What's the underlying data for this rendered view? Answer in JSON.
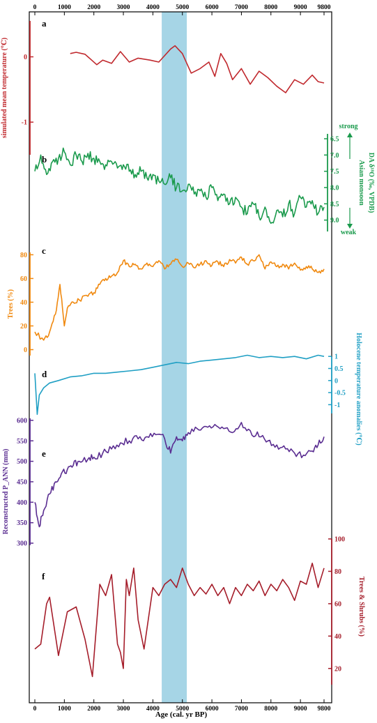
{
  "x_axis": {
    "label": "Age (cal. yr BP)",
    "ticks": [
      0,
      1000,
      2000,
      3000,
      4000,
      5000,
      6000,
      7000,
      8000,
      9000,
      9800
    ],
    "range": [
      0,
      9800
    ]
  },
  "highlight": {
    "x_range": [
      4300,
      5150
    ],
    "color": "#a6d5e6"
  },
  "chart_data": [
    {
      "type": "line",
      "panel": "a",
      "color": "#c0282d",
      "ylabel": "simulated mean temperature (℃)",
      "ylim": [
        -1.5,
        0.55
      ],
      "yticks": [
        0,
        -1
      ],
      "axis_side": "left",
      "x": [
        1200,
        1400,
        1700,
        2100,
        2300,
        2600,
        2900,
        3200,
        3500,
        3900,
        4200,
        4600,
        4750,
        5000,
        5300,
        5600,
        5900,
        6100,
        6300,
        6500,
        6700,
        7000,
        7300,
        7600,
        7900,
        8200,
        8500,
        8800,
        9100,
        9400,
        9600,
        9800
      ],
      "values": [
        0.05,
        0.07,
        0.04,
        -0.12,
        -0.05,
        -0.1,
        0.08,
        -0.08,
        -0.02,
        -0.05,
        -0.08,
        0.12,
        0.17,
        0.05,
        -0.25,
        -0.18,
        -0.08,
        -0.3,
        0.05,
        -0.1,
        -0.35,
        -0.18,
        -0.42,
        -0.22,
        -0.32,
        -0.45,
        -0.55,
        -0.35,
        -0.42,
        -0.28,
        -0.38,
        -0.4
      ]
    },
    {
      "type": "line",
      "panel": "b",
      "color": "#1a9a4c",
      "ylabel": "DA δ¹⁸O (‰, VPDB)",
      "ylabel2": "Asian monsoon",
      "strong_label": "strong",
      "weak_label": "weak",
      "ylim": [
        9.35,
        6.35
      ],
      "yticks": [
        9.0,
        8.5,
        8.0,
        7.5,
        7.0,
        6.5
      ],
      "ytick_labels": [
        "9.0",
        "8.5",
        "8.0",
        "7.5",
        "7.0",
        "6.5"
      ],
      "axis_side": "right",
      "x": [
        0,
        200,
        400,
        600,
        800,
        1000,
        1200,
        1400,
        1600,
        1800,
        2000,
        2200,
        2400,
        2600,
        2800,
        3000,
        3200,
        3400,
        3600,
        3800,
        4000,
        4200,
        4400,
        4600,
        4800,
        5000,
        5200,
        5400,
        5600,
        5800,
        6000,
        6200,
        6400,
        6600,
        6800,
        7000,
        7200,
        7400,
        7600,
        7800,
        8000,
        8200,
        8400,
        8600,
        8800,
        9000,
        9200,
        9400,
        9600,
        9800
      ],
      "values": [
        7.5,
        7.0,
        7.6,
        7.2,
        7.1,
        6.9,
        7.3,
        7.0,
        7.2,
        6.95,
        7.1,
        7.2,
        7.3,
        7.2,
        7.4,
        7.3,
        7.5,
        7.6,
        7.5,
        7.7,
        7.6,
        7.8,
        7.9,
        7.7,
        8.0,
        8.1,
        7.9,
        8.2,
        8.1,
        8.3,
        8.0,
        8.4,
        8.2,
        8.5,
        8.3,
        8.6,
        8.8,
        8.5,
        8.9,
        8.6,
        9.1,
        8.7,
        8.9,
        8.5,
        8.8,
        8.3,
        8.6,
        8.4,
        8.8,
        8.6
      ]
    },
    {
      "type": "line",
      "panel": "c",
      "color": "#f0890f",
      "ylabel": "Trees (%)",
      "ylim": [
        -5,
        82
      ],
      "yticks": [
        0,
        20,
        40,
        60,
        80
      ],
      "axis_side": "left",
      "x": [
        0,
        300,
        500,
        700,
        850,
        1000,
        1100,
        1300,
        1500,
        1800,
        2000,
        2200,
        2400,
        2600,
        2800,
        3000,
        3200,
        3400,
        3600,
        3800,
        4000,
        4200,
        4400,
        4600,
        4800,
        5000,
        5200,
        5400,
        5600,
        5800,
        6000,
        6200,
        6400,
        6600,
        6800,
        7000,
        7200,
        7400,
        7600,
        7800,
        8000,
        8200,
        8400,
        8600,
        8800,
        9000,
        9200,
        9400,
        9600,
        9800
      ],
      "values": [
        15,
        8,
        15,
        30,
        55,
        20,
        35,
        40,
        42,
        45,
        48,
        55,
        60,
        62,
        65,
        75,
        70,
        72,
        68,
        73,
        70,
        75,
        68,
        72,
        76,
        70,
        73,
        69,
        72,
        75,
        71,
        74,
        70,
        76,
        73,
        78,
        72,
        75,
        80,
        68,
        74,
        70,
        72,
        68,
        73,
        67,
        70,
        68,
        65,
        68
      ]
    },
    {
      "type": "line",
      "panel": "d",
      "color": "#1f9fc4",
      "ylabel": "Holocene temperature anomalies (℃)",
      "ylim": [
        -1.45,
        1.15
      ],
      "yticks": [
        1,
        0.5,
        0,
        -0.5,
        -1
      ],
      "ytick_labels": [
        "1",
        "0.5",
        "0",
        "-0.5",
        "-1"
      ],
      "axis_side": "right",
      "x": [
        0,
        80,
        150,
        300,
        500,
        800,
        1200,
        1600,
        2000,
        2400,
        2800,
        3200,
        3600,
        4000,
        4400,
        4800,
        5200,
        5600,
        6000,
        6400,
        6800,
        7200,
        7600,
        8000,
        8400,
        8800,
        9200,
        9600,
        9800
      ],
      "values": [
        0.3,
        -1.4,
        -0.6,
        -0.3,
        -0.1,
        0.0,
        0.15,
        0.2,
        0.3,
        0.3,
        0.35,
        0.4,
        0.45,
        0.55,
        0.65,
        0.75,
        0.7,
        0.8,
        0.85,
        0.9,
        0.95,
        1.05,
        0.95,
        1.0,
        0.95,
        1.0,
        0.9,
        1.05,
        1.0
      ]
    },
    {
      "type": "line",
      "panel": "e",
      "color": "#5a2d91",
      "ylabel": "Reconstructed P_ANN (mm)",
      "ylim": [
        295,
        605
      ],
      "yticks": [
        300,
        350,
        400,
        450,
        500,
        550,
        600
      ],
      "axis_side": "left",
      "x": [
        0,
        150,
        300,
        500,
        700,
        900,
        1100,
        1300,
        1500,
        1800,
        2000,
        2300,
        2600,
        2900,
        3200,
        3500,
        3800,
        4100,
        4400,
        4600,
        4800,
        5000,
        5200,
        5500,
        5800,
        6100,
        6400,
        6700,
        7000,
        7300,
        7600,
        7900,
        8200,
        8500,
        8800,
        9100,
        9400,
        9600,
        9800
      ],
      "values": [
        400,
        340,
        380,
        420,
        450,
        470,
        480,
        490,
        500,
        505,
        510,
        520,
        530,
        545,
        550,
        555,
        560,
        565,
        555,
        520,
        560,
        550,
        570,
        580,
        585,
        590,
        580,
        570,
        595,
        575,
        560,
        550,
        540,
        530,
        520,
        515,
        525,
        540,
        560
      ]
    },
    {
      "type": "line",
      "panel": "f",
      "color": "#a51d2a",
      "ylabel": "Trees & Shrubs (%)",
      "ylim": [
        10,
        100
      ],
      "yticks": [
        100,
        80,
        60,
        40,
        20
      ],
      "axis_side": "right",
      "x": [
        0,
        200,
        400,
        500,
        800,
        1100,
        1400,
        1700,
        1950,
        2200,
        2400,
        2600,
        2800,
        2900,
        3000,
        3100,
        3200,
        3350,
        3500,
        3700,
        4000,
        4200,
        4400,
        4600,
        4800,
        5000,
        5200,
        5400,
        5600,
        5800,
        6000,
        6200,
        6400,
        6600,
        6800,
        7000,
        7200,
        7400,
        7600,
        7800,
        8000,
        8200,
        8400,
        8600,
        8800,
        9000,
        9200,
        9400,
        9600,
        9800
      ],
      "values": [
        32,
        35,
        60,
        64,
        28,
        55,
        58,
        38,
        15,
        72,
        65,
        78,
        35,
        30,
        20,
        75,
        65,
        82,
        50,
        32,
        70,
        65,
        72,
        75,
        70,
        82,
        72,
        65,
        70,
        66,
        72,
        65,
        70,
        60,
        70,
        65,
        72,
        68,
        74,
        65,
        72,
        68,
        75,
        70,
        62,
        74,
        72,
        85,
        70,
        82
      ]
    }
  ]
}
